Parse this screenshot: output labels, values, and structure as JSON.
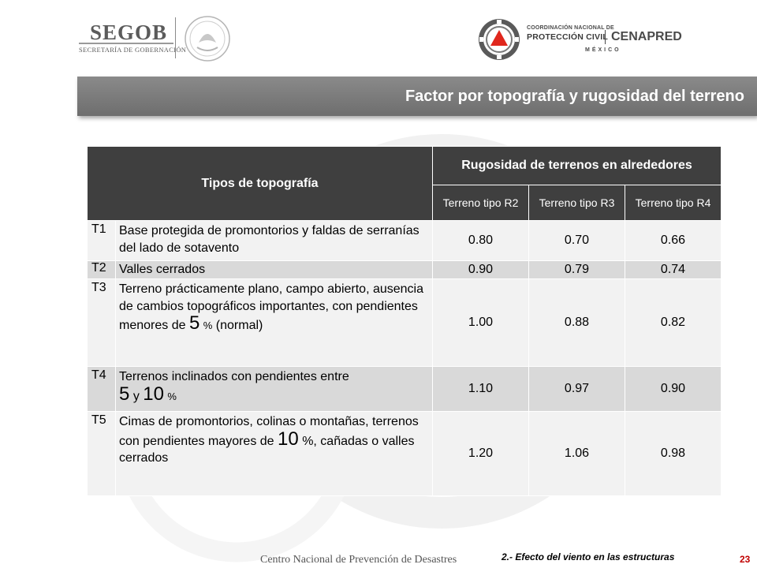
{
  "header": {
    "segob_word": "SEGOB",
    "segob_sub": "SECRETARÍA DE GOBERNACIÓN",
    "pc_line1": "COORDINACIÓN NACIONAL DE",
    "pc_line2": "PROTECCIÓN CIVIL",
    "pc_cenapred": "CENAPRED",
    "pc_country": "MÉXICO"
  },
  "title": "Factor por topografía y rugosidad del terreno",
  "table": {
    "header_topo": "Tipos de topografía",
    "header_rug": "Rugosidad de terrenos en alrededores",
    "subheaders": [
      "Terreno tipo R2",
      "Terreno tipo R3",
      "Terreno tipo R4"
    ],
    "rows": [
      {
        "code": "T1",
        "desc": "Base protegida de promontorios y faldas de serranías del lado de sotavento",
        "values": [
          "0.80",
          "0.70",
          "0.66"
        ]
      },
      {
        "code": "T2",
        "desc": "Valles cerrados",
        "values": [
          "0.90",
          "0.79",
          "0.74"
        ]
      },
      {
        "code": "T3",
        "desc_a": "Terreno prácticamente plano, campo abierto, ausencia de cambios topográficos importantes, con pendientes menores de",
        "desc_num": "5",
        "desc_pct": "%",
        "desc_b": "(normal)",
        "values": [
          "1.00",
          "0.88",
          "0.82"
        ]
      },
      {
        "code": "T4",
        "desc_a": "Terrenos inclinados con pendientes entre",
        "desc_num1": "5",
        "desc_y": "y",
        "desc_num2": "10",
        "desc_pct": "%",
        "values": [
          "1.10",
          "0.97",
          "0.90"
        ]
      },
      {
        "code": "T5",
        "desc_a": "Cimas de promontorios, colinas o montañas, terrenos con pendientes mayores de",
        "desc_num": "10",
        "desc_b": "%, cañadas o valles cerrados",
        "values": [
          "1.20",
          "1.06",
          "0.98"
        ]
      }
    ]
  },
  "footer": {
    "left": "Centro Nacional de Prevención de Desastres",
    "right": "2.- Efecto del viento en las estructuras",
    "page": "23"
  },
  "colors": {
    "header_bg": "#3f3f3f",
    "row_light": "#f2f2f2",
    "row_dark": "#d9d9d9",
    "title_bar": "#7a7a7a",
    "page_number": "#c00000"
  }
}
